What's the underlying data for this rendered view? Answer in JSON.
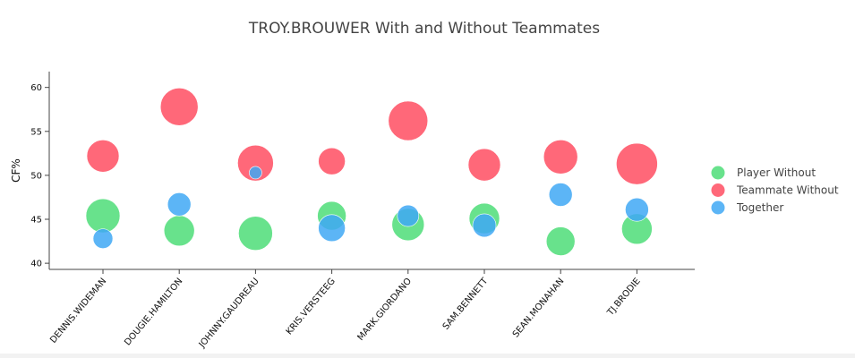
{
  "chart_data": {
    "type": "scatter",
    "title": "TROY.BROUWER With and Without Teammates",
    "xlabel": "",
    "ylabel": "CF%",
    "ylim": [
      39.3,
      61.8
    ],
    "yticks": [
      40,
      45,
      50,
      55,
      60
    ],
    "grid": false,
    "legend_position": "right",
    "categories": [
      "DENNIS.WIDEMAN",
      "DOUGIE.HAMILTON",
      "JOHNNY.GAUDREAU",
      "KRIS.VERSTEEG",
      "MARK.GIORDANO",
      "SAM.BENNETT",
      "SEAN.MONAHAN",
      "TJ.BRODIE"
    ],
    "series": [
      {
        "name": "Player Without",
        "color": "#4ddd78",
        "values": [
          45.4,
          43.7,
          43.4,
          45.4,
          44.4,
          45.1,
          42.5,
          43.9
        ],
        "sizes": [
          19,
          17,
          19,
          16,
          18,
          17,
          16,
          17
        ]
      },
      {
        "name": "Teammate Without",
        "color": "#ff4d61",
        "values": [
          52.2,
          57.8,
          51.4,
          51.6,
          56.2,
          51.2,
          52.1,
          51.3
        ],
        "sizes": [
          18,
          21,
          20,
          15,
          22,
          18,
          19,
          23
        ]
      },
      {
        "name": "Together",
        "color": "#40a8f5",
        "values": [
          42.8,
          46.7,
          50.3,
          44.0,
          45.4,
          44.3,
          47.8,
          46.1
        ],
        "sizes": [
          11,
          13,
          7,
          15,
          12,
          13,
          13,
          13
        ]
      }
    ]
  }
}
